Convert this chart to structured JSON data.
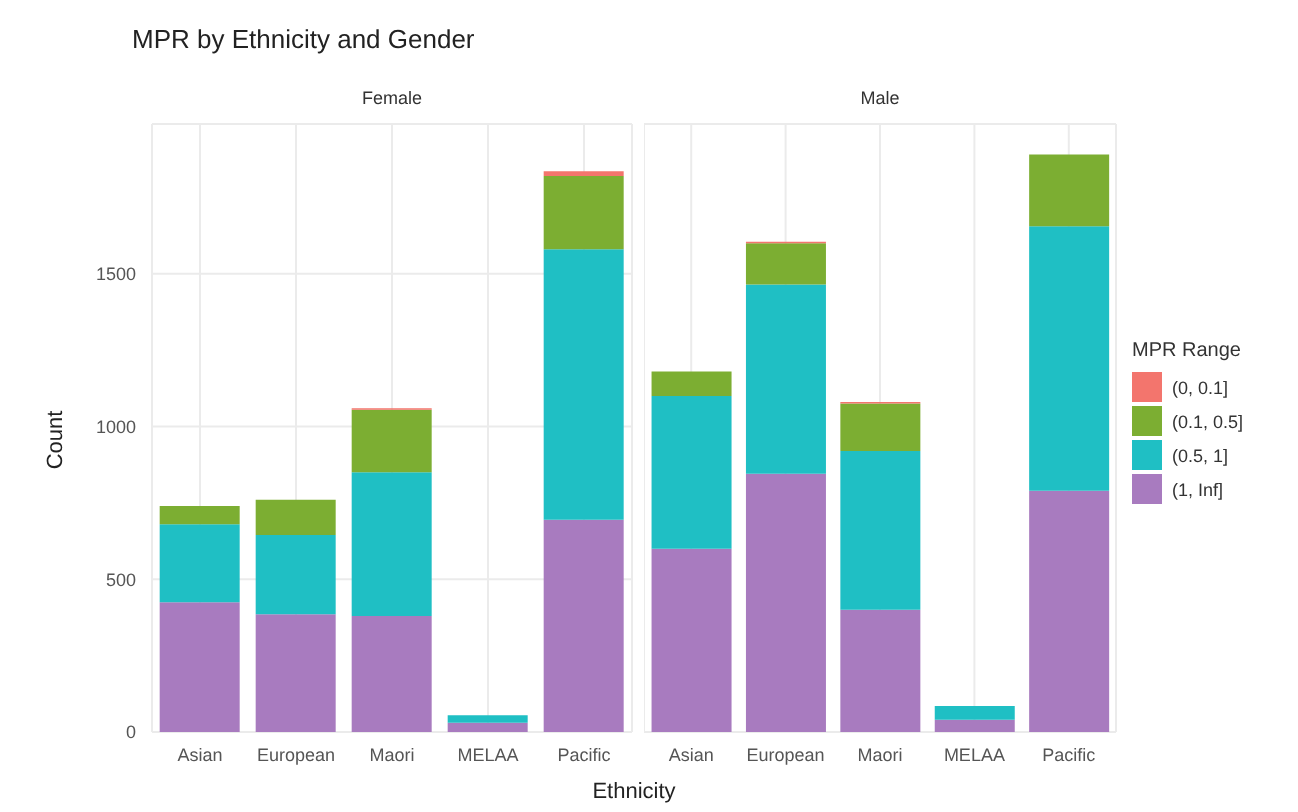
{
  "chart_data": [
    {
      "type": "bar",
      "title": "MPR by Ethnicity and Gender",
      "subtitle": "Female",
      "xlabel": "Ethnicity",
      "ylabel": "Count",
      "categories": [
        "Asian",
        "European",
        "Maori",
        "MELAA",
        "Pacific"
      ],
      "stacked": true,
      "ylim": [
        0,
        1990
      ],
      "yticks": [
        0,
        500,
        1000,
        1500
      ],
      "grid": true,
      "legend": "right",
      "legend_title": "MPR Range",
      "series": [
        {
          "name": "(1, Inf]",
          "color": "#a87bbf",
          "values": [
            425,
            385,
            380,
            30,
            695
          ]
        },
        {
          "name": "(0.5, 1]",
          "color": "#1fbfc4",
          "values": [
            255,
            260,
            470,
            25,
            885
          ]
        },
        {
          "name": "(0.1, 0.5]",
          "color": "#7cae32",
          "values": [
            60,
            115,
            205,
            null,
            240
          ]
        },
        {
          "name": "(0, 0.1]",
          "color": "#f3756d",
          "values": [
            null,
            null,
            5,
            null,
            15
          ]
        }
      ]
    },
    {
      "type": "bar",
      "subtitle": "Male",
      "categories": [
        "Asian",
        "European",
        "Maori",
        "MELAA",
        "Pacific"
      ],
      "stacked": true,
      "ylim": [
        0,
        1990
      ],
      "yticks": [
        0,
        500,
        1000,
        1500
      ],
      "tick_labels": "x",
      "grid": true,
      "series": [
        {
          "color": "#a87bbf",
          "values": [
            600,
            845,
            400,
            40,
            790
          ]
        },
        {
          "color": "#1fbfc4",
          "values": [
            500,
            620,
            520,
            45,
            865
          ]
        },
        {
          "color": "#7cae32",
          "values": [
            80,
            135,
            155,
            null,
            235
          ]
        },
        {
          "color": "#f3756d",
          "values": [
            null,
            5,
            5,
            null,
            null
          ]
        }
      ]
    }
  ]
}
